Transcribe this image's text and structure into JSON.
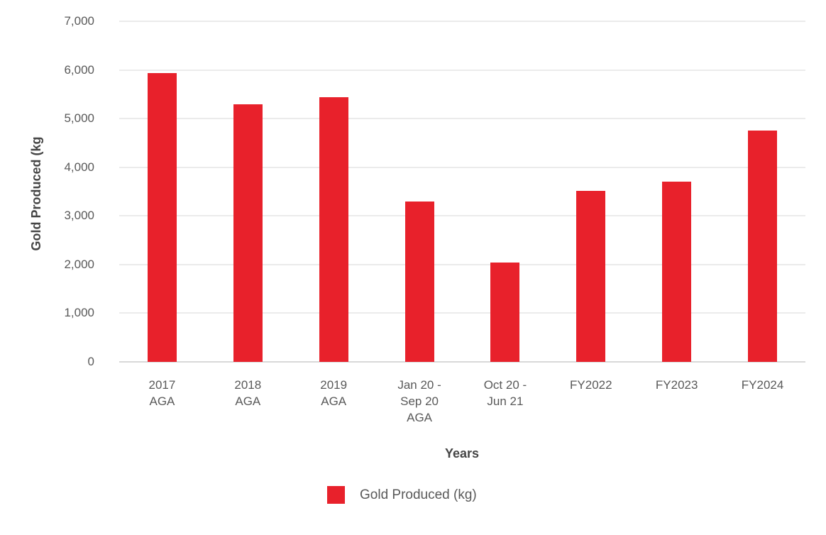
{
  "chart_data": {
    "type": "bar",
    "title": "",
    "categories": [
      "2017\nAGA",
      "2018\nAGA",
      "2019\nAGA",
      "Jan 20 -\nSep 20\nAGA",
      "Oct 20 -\nJun 21",
      "FY2022",
      "FY2023",
      "FY2024"
    ],
    "values": [
      5930,
      5290,
      5440,
      3300,
      2040,
      3510,
      3710,
      4750
    ],
    "series": [
      {
        "name": "Gold Produced (kg)",
        "values": [
          5930,
          5290,
          5440,
          3300,
          2040,
          3510,
          3710,
          4750
        ]
      }
    ],
    "xlabel": "Years",
    "ylabel": "Gold Produced (kg",
    "ylim": [
      0,
      7000
    ],
    "ytick_step": 1000,
    "ytick_labels": [
      "0",
      "1,000",
      "2,000",
      "3,000",
      "4,000",
      "5,000",
      "6,000",
      "7,000"
    ],
    "grid": true,
    "legend_position": "bottom",
    "colors": {
      "bar": "#e8212b",
      "grid": "#ebebeb",
      "axis_line": "#d9d9d9",
      "tick_text": "#595959",
      "title_text": "#454545"
    }
  },
  "legend": {
    "label": "Gold Produced (kg)"
  }
}
